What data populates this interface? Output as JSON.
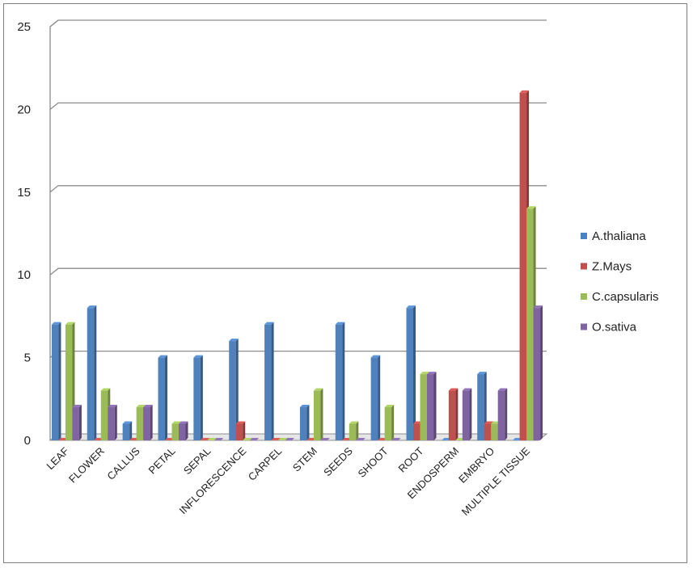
{
  "chart_data": {
    "type": "bar",
    "title": "",
    "xlabel": "",
    "ylabel": "",
    "ylim": [
      0,
      25
    ],
    "yticks": [
      0,
      5,
      10,
      15,
      20,
      25
    ],
    "grid": true,
    "legend_position": "right",
    "categories": [
      "LEAF",
      "FLOWER",
      "CALLUS",
      "PETAL",
      "SEPAL",
      "INFLORESCENCE",
      "CARPEL",
      "STEM",
      "SEEDS",
      "SHOOT",
      "ROOT",
      "ENDOSPERM",
      "EMBRYO",
      "MULTIPLE TISSUE"
    ],
    "series": [
      {
        "name": "A.thaliana",
        "color": "#4f81bd",
        "values": [
          7,
          8,
          1,
          5,
          5,
          6,
          7,
          2,
          7,
          5,
          8,
          0,
          4,
          0
        ]
      },
      {
        "name": "Z.Mays",
        "color": "#c0504d",
        "values": [
          0,
          0,
          0,
          0,
          0,
          1,
          0,
          0,
          0,
          0,
          1,
          3,
          1,
          21
        ]
      },
      {
        "name": "C.capsularis",
        "color": "#9bbb59",
        "values": [
          7,
          3,
          2,
          1,
          0,
          0,
          0,
          3,
          1,
          2,
          4,
          0,
          1,
          14
        ]
      },
      {
        "name": "O.sativa",
        "color": "#8064a2",
        "values": [
          2,
          2,
          2,
          1,
          0,
          0,
          0,
          0,
          0,
          0,
          4,
          3,
          3,
          8
        ]
      }
    ]
  }
}
